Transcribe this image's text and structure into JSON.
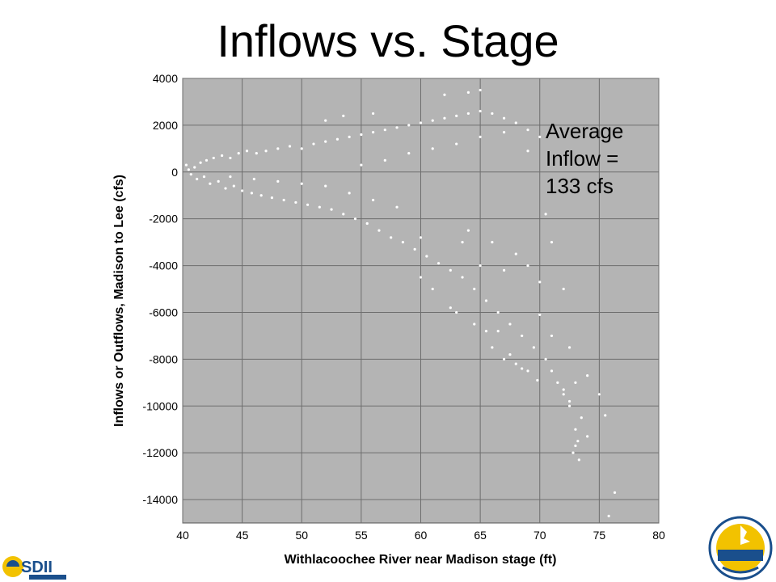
{
  "slide": {
    "title": "Inflows vs. Stage",
    "annotation_lines": [
      "Average",
      "Inflow =",
      "133 cfs"
    ]
  },
  "chart_data": {
    "type": "scatter",
    "title": "",
    "xlabel": "Withlacoochee River near Madison stage (ft)",
    "ylabel": "Inflows or Outflows, Madison to Lee (cfs)",
    "xlim": [
      40,
      80
    ],
    "ylim": [
      -15000,
      4000
    ],
    "xticks": [
      40,
      45,
      50,
      55,
      60,
      65,
      70,
      75,
      80
    ],
    "yticks": [
      4000,
      2000,
      0,
      -2000,
      -4000,
      -6000,
      -8000,
      -10000,
      -12000,
      -14000
    ],
    "grid": true,
    "plot_background": "#b4b4b4",
    "point_color": "#ffffff",
    "points": [
      [
        40.3,
        300
      ],
      [
        40.5,
        100
      ],
      [
        40.7,
        -100
      ],
      [
        41.0,
        200
      ],
      [
        41.2,
        -300
      ],
      [
        41.5,
        400
      ],
      [
        41.8,
        -200
      ],
      [
        42.0,
        500
      ],
      [
        42.3,
        -500
      ],
      [
        42.6,
        600
      ],
      [
        43.0,
        -400
      ],
      [
        43.3,
        700
      ],
      [
        43.6,
        -700
      ],
      [
        44.0,
        600
      ],
      [
        44.3,
        -600
      ],
      [
        44.7,
        800
      ],
      [
        45.0,
        -800
      ],
      [
        45.4,
        900
      ],
      [
        45.8,
        -900
      ],
      [
        46.2,
        800
      ],
      [
        46.6,
        -1000
      ],
      [
        47.0,
        900
      ],
      [
        47.5,
        -1100
      ],
      [
        48.0,
        1000
      ],
      [
        48.5,
        -1200
      ],
      [
        49.0,
        1100
      ],
      [
        49.5,
        -1300
      ],
      [
        50.0,
        1000
      ],
      [
        50.5,
        -1400
      ],
      [
        51.0,
        1200
      ],
      [
        51.5,
        -1500
      ],
      [
        52.0,
        1300
      ],
      [
        52.5,
        -1600
      ],
      [
        53.0,
        1400
      ],
      [
        53.5,
        -1800
      ],
      [
        54.0,
        1500
      ],
      [
        54.5,
        -2000
      ],
      [
        55.0,
        1600
      ],
      [
        55.5,
        -2200
      ],
      [
        56.0,
        1700
      ],
      [
        56.5,
        -2500
      ],
      [
        57.0,
        1800
      ],
      [
        57.5,
        -2800
      ],
      [
        58.0,
        1900
      ],
      [
        58.5,
        -3000
      ],
      [
        59.0,
        2000
      ],
      [
        59.5,
        -3300
      ],
      [
        60.0,
        2100
      ],
      [
        60.5,
        -3600
      ],
      [
        61.0,
        2200
      ],
      [
        61.5,
        -3900
      ],
      [
        62.0,
        2300
      ],
      [
        62.5,
        -4200
      ],
      [
        63.0,
        2400
      ],
      [
        63.5,
        -4500
      ],
      [
        64.0,
        2500
      ],
      [
        64.5,
        -5000
      ],
      [
        65.0,
        2600
      ],
      [
        65.5,
        -5500
      ],
      [
        66.0,
        2500
      ],
      [
        66.5,
        -6000
      ],
      [
        67.0,
        2300
      ],
      [
        67.5,
        -6500
      ],
      [
        68.0,
        2100
      ],
      [
        68.5,
        -7000
      ],
      [
        69.0,
        1800
      ],
      [
        69.5,
        -7500
      ],
      [
        70.0,
        1500
      ],
      [
        70.5,
        -8000
      ],
      [
        71.0,
        -8500
      ],
      [
        71.5,
        -9000
      ],
      [
        72.0,
        -9500
      ],
      [
        72.5,
        -10000
      ],
      [
        73.0,
        -11000
      ],
      [
        73.3,
        -12300
      ],
      [
        74.0,
        -8700
      ],
      [
        75.0,
        -9500
      ],
      [
        75.5,
        -10400
      ],
      [
        76.3,
        -13700
      ],
      [
        75.8,
        -14700
      ],
      [
        65.0,
        3500
      ],
      [
        64.0,
        3400
      ],
      [
        62.0,
        3300
      ],
      [
        52.0,
        2200
      ],
      [
        53.5,
        2400
      ],
      [
        56.0,
        2500
      ],
      [
        66.5,
        -6800
      ],
      [
        67.0,
        -8000
      ],
      [
        68.5,
        -8400
      ],
      [
        69.8,
        -8900
      ],
      [
        70.0,
        -6100
      ],
      [
        71.0,
        -7000
      ],
      [
        72.0,
        -9300
      ],
      [
        72.5,
        -9800
      ],
      [
        73.0,
        -11700
      ],
      [
        60.0,
        -4500
      ],
      [
        61.0,
        -5000
      ],
      [
        62.5,
        -5800
      ],
      [
        63.0,
        -6000
      ],
      [
        64.5,
        -6500
      ],
      [
        65.5,
        -6800
      ],
      [
        66.0,
        -7500
      ],
      [
        67.5,
        -7800
      ],
      [
        68.0,
        -8200
      ],
      [
        69.0,
        -8500
      ],
      [
        63.5,
        -3000
      ],
      [
        64.0,
        -2500
      ],
      [
        65.0,
        -4000
      ],
      [
        66.0,
        -3000
      ],
      [
        67.0,
        -4200
      ],
      [
        68.0,
        -3500
      ],
      [
        69.0,
        -4000
      ],
      [
        70.0,
        -4700
      ],
      [
        60.0,
        -2800
      ],
      [
        58.0,
        -1500
      ],
      [
        56.0,
        -1200
      ],
      [
        54.0,
        -900
      ],
      [
        52.0,
        -600
      ],
      [
        50.0,
        -500
      ],
      [
        48.0,
        -400
      ],
      [
        46.0,
        -300
      ],
      [
        44.0,
        -200
      ],
      [
        55.0,
        300
      ],
      [
        57.0,
        500
      ],
      [
        59.0,
        800
      ],
      [
        61.0,
        1000
      ],
      [
        63.0,
        1200
      ],
      [
        65.0,
        1500
      ],
      [
        67.0,
        1700
      ],
      [
        69.0,
        900
      ],
      [
        70.5,
        -1800
      ],
      [
        71.0,
        -3000
      ],
      [
        72.0,
        -5000
      ],
      [
        72.5,
        -7500
      ],
      [
        73.0,
        -9000
      ],
      [
        73.5,
        -10500
      ],
      [
        74.0,
        -11300
      ],
      [
        73.2,
        -11500
      ],
      [
        72.8,
        -12000
      ]
    ]
  }
}
